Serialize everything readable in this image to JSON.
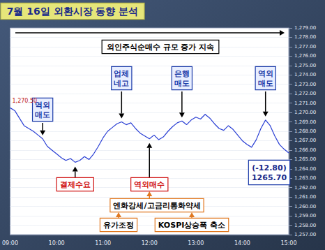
{
  "chart_data": {
    "type": "line",
    "title": "7월 16일 외환시장 동향 분석",
    "categories": [
      "09:00",
      null,
      null,
      null,
      null,
      null,
      null,
      null,
      null,
      null,
      "10:00",
      null,
      null,
      null,
      null,
      null,
      null,
      null,
      null,
      null,
      "11:00",
      null,
      null,
      null,
      null,
      null,
      null,
      null,
      null,
      null,
      "12:00",
      null,
      null,
      null,
      null,
      null,
      null,
      null,
      null,
      null,
      "13:00",
      null,
      null,
      null,
      null,
      null,
      null,
      null,
      null,
      null,
      "14:00",
      null,
      null,
      null,
      null,
      null,
      null,
      null,
      null,
      null,
      "15:00"
    ],
    "values": [
      1270.5,
      1270.2,
      1269.4,
      1268.6,
      1268.3,
      1268.0,
      1267.6,
      1267.2,
      1266.4,
      1266.0,
      1265.6,
      1265.2,
      1264.9,
      1265.1,
      1264.7,
      1264.9,
      1265.3,
      1265.0,
      1265.6,
      1266.4,
      1267.3,
      1268.0,
      1268.4,
      1268.8,
      1269.0,
      1268.7,
      1268.9,
      1268.3,
      1267.8,
      1267.5,
      1267.2,
      1267.6,
      1267.1,
      1267.4,
      1268.0,
      1268.5,
      1268.9,
      1269.1,
      1268.7,
      1269.2,
      1269.5,
      1269.3,
      1269.8,
      1269.4,
      1268.8,
      1268.3,
      1268.1,
      1268.6,
      1268.2,
      1267.6,
      1267.0,
      1266.6,
      1266.3,
      1267.1,
      1268.3,
      1269.2,
      1268.6,
      1267.5,
      1266.6,
      1266.1,
      1265.7
    ],
    "color": "#2a3fd4",
    "ylim": [
      1257,
      1279
    ],
    "yticks": [
      {
        "value": 1257,
        "label": "1,257.00"
      },
      {
        "value": 1258,
        "label": "1,258.00"
      },
      {
        "value": 1259,
        "label": "1,259.00"
      },
      {
        "value": 1260,
        "label": "1,260.00"
      },
      {
        "value": 1261,
        "label": "1,261.00"
      },
      {
        "value": 1262,
        "label": "1,262.00"
      },
      {
        "value": 1263,
        "label": "1,263.00"
      },
      {
        "value": 1264,
        "label": "1,264.00"
      },
      {
        "value": 1265,
        "label": "1,265.00"
      },
      {
        "value": 1266,
        "label": "1,266.00"
      },
      {
        "value": 1267,
        "label": "1,267.00"
      },
      {
        "value": 1268,
        "label": "1,268.00"
      },
      {
        "value": 1269,
        "label": "1,269.00"
      },
      {
        "value": 1270,
        "label": "1,270.00"
      },
      {
        "value": 1271,
        "label": "1,271.00"
      },
      {
        "value": 1272,
        "label": "1,272.00"
      },
      {
        "value": 1273,
        "label": "1,273.00"
      },
      {
        "value": 1274,
        "label": "1,274.00"
      },
      {
        "value": 1275,
        "label": "1,275.00"
      },
      {
        "value": 1276,
        "label": "1,276.00"
      },
      {
        "value": 1277,
        "label": "1,277.00"
      },
      {
        "value": 1278,
        "label": "1,278.00"
      },
      {
        "value": 1279,
        "label": "1,279.00"
      }
    ],
    "grid": true,
    "high_label": "1,270.50",
    "annotations": [
      "외인주식순매수 규모 증가 지속",
      "역외매도",
      "업체네고",
      "은행매도",
      "역외매도",
      "결제수요",
      "역외매수",
      "엔화강세/고금리통화약세",
      "유가조정",
      "KOSPI상승폭 축소"
    ],
    "end_labels": [
      "(-12.80)",
      "1265.70"
    ]
  }
}
